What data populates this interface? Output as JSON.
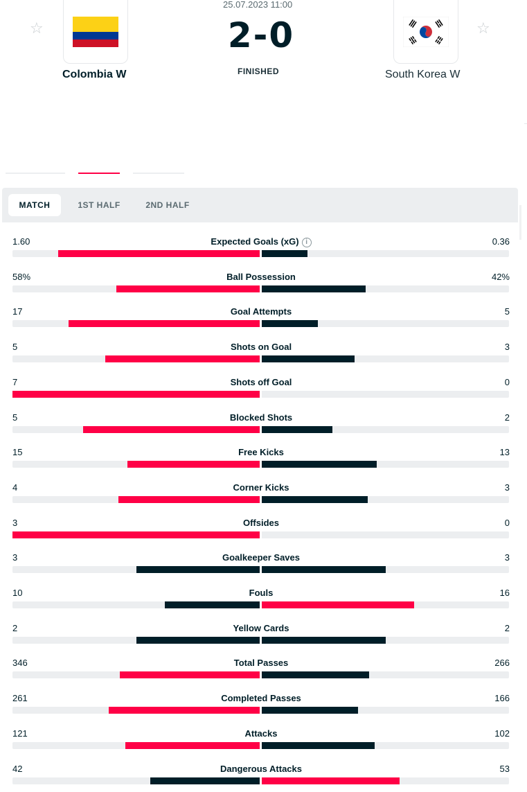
{
  "match": {
    "date": "25.07.2023 11:00",
    "score": "2-0",
    "status": "FINISHED",
    "home": {
      "name": "Colombia W",
      "flag": "colombia-flag-icon"
    },
    "away": {
      "name": "South Korea W",
      "flag": "south-korea-flag-icon"
    },
    "star": "☆"
  },
  "tabs": [
    {
      "label": "MATCH",
      "active": true
    },
    {
      "label": "1ST HALF",
      "active": false
    },
    {
      "label": "2ND HALF",
      "active": false
    }
  ],
  "colors": {
    "highlight": "#ff0046",
    "dark": "#001e28",
    "track": "#eceef0"
  },
  "stats": [
    {
      "category": "Expected Goals (xG)",
      "home": "1.60",
      "away": "0.36",
      "info": true
    },
    {
      "category": "Ball Possession",
      "home": "58%",
      "away": "42%"
    },
    {
      "category": "Goal Attempts",
      "home": "17",
      "away": "5"
    },
    {
      "category": "Shots on Goal",
      "home": "5",
      "away": "3"
    },
    {
      "category": "Shots off Goal",
      "home": "7",
      "away": "0"
    },
    {
      "category": "Blocked Shots",
      "home": "5",
      "away": "2"
    },
    {
      "category": "Free Kicks",
      "home": "15",
      "away": "13"
    },
    {
      "category": "Corner Kicks",
      "home": "4",
      "away": "3"
    },
    {
      "category": "Offsides",
      "home": "3",
      "away": "0"
    },
    {
      "category": "Goalkeeper Saves",
      "home": "3",
      "away": "3"
    },
    {
      "category": "Fouls",
      "home": "10",
      "away": "16"
    },
    {
      "category": "Yellow Cards",
      "home": "2",
      "away": "2"
    },
    {
      "category": "Total Passes",
      "home": "346",
      "away": "266"
    },
    {
      "category": "Completed Passes",
      "home": "261",
      "away": "166"
    },
    {
      "category": "Attacks",
      "home": "121",
      "away": "102"
    },
    {
      "category": "Dangerous Attacks",
      "home": "42",
      "away": "53"
    }
  ]
}
